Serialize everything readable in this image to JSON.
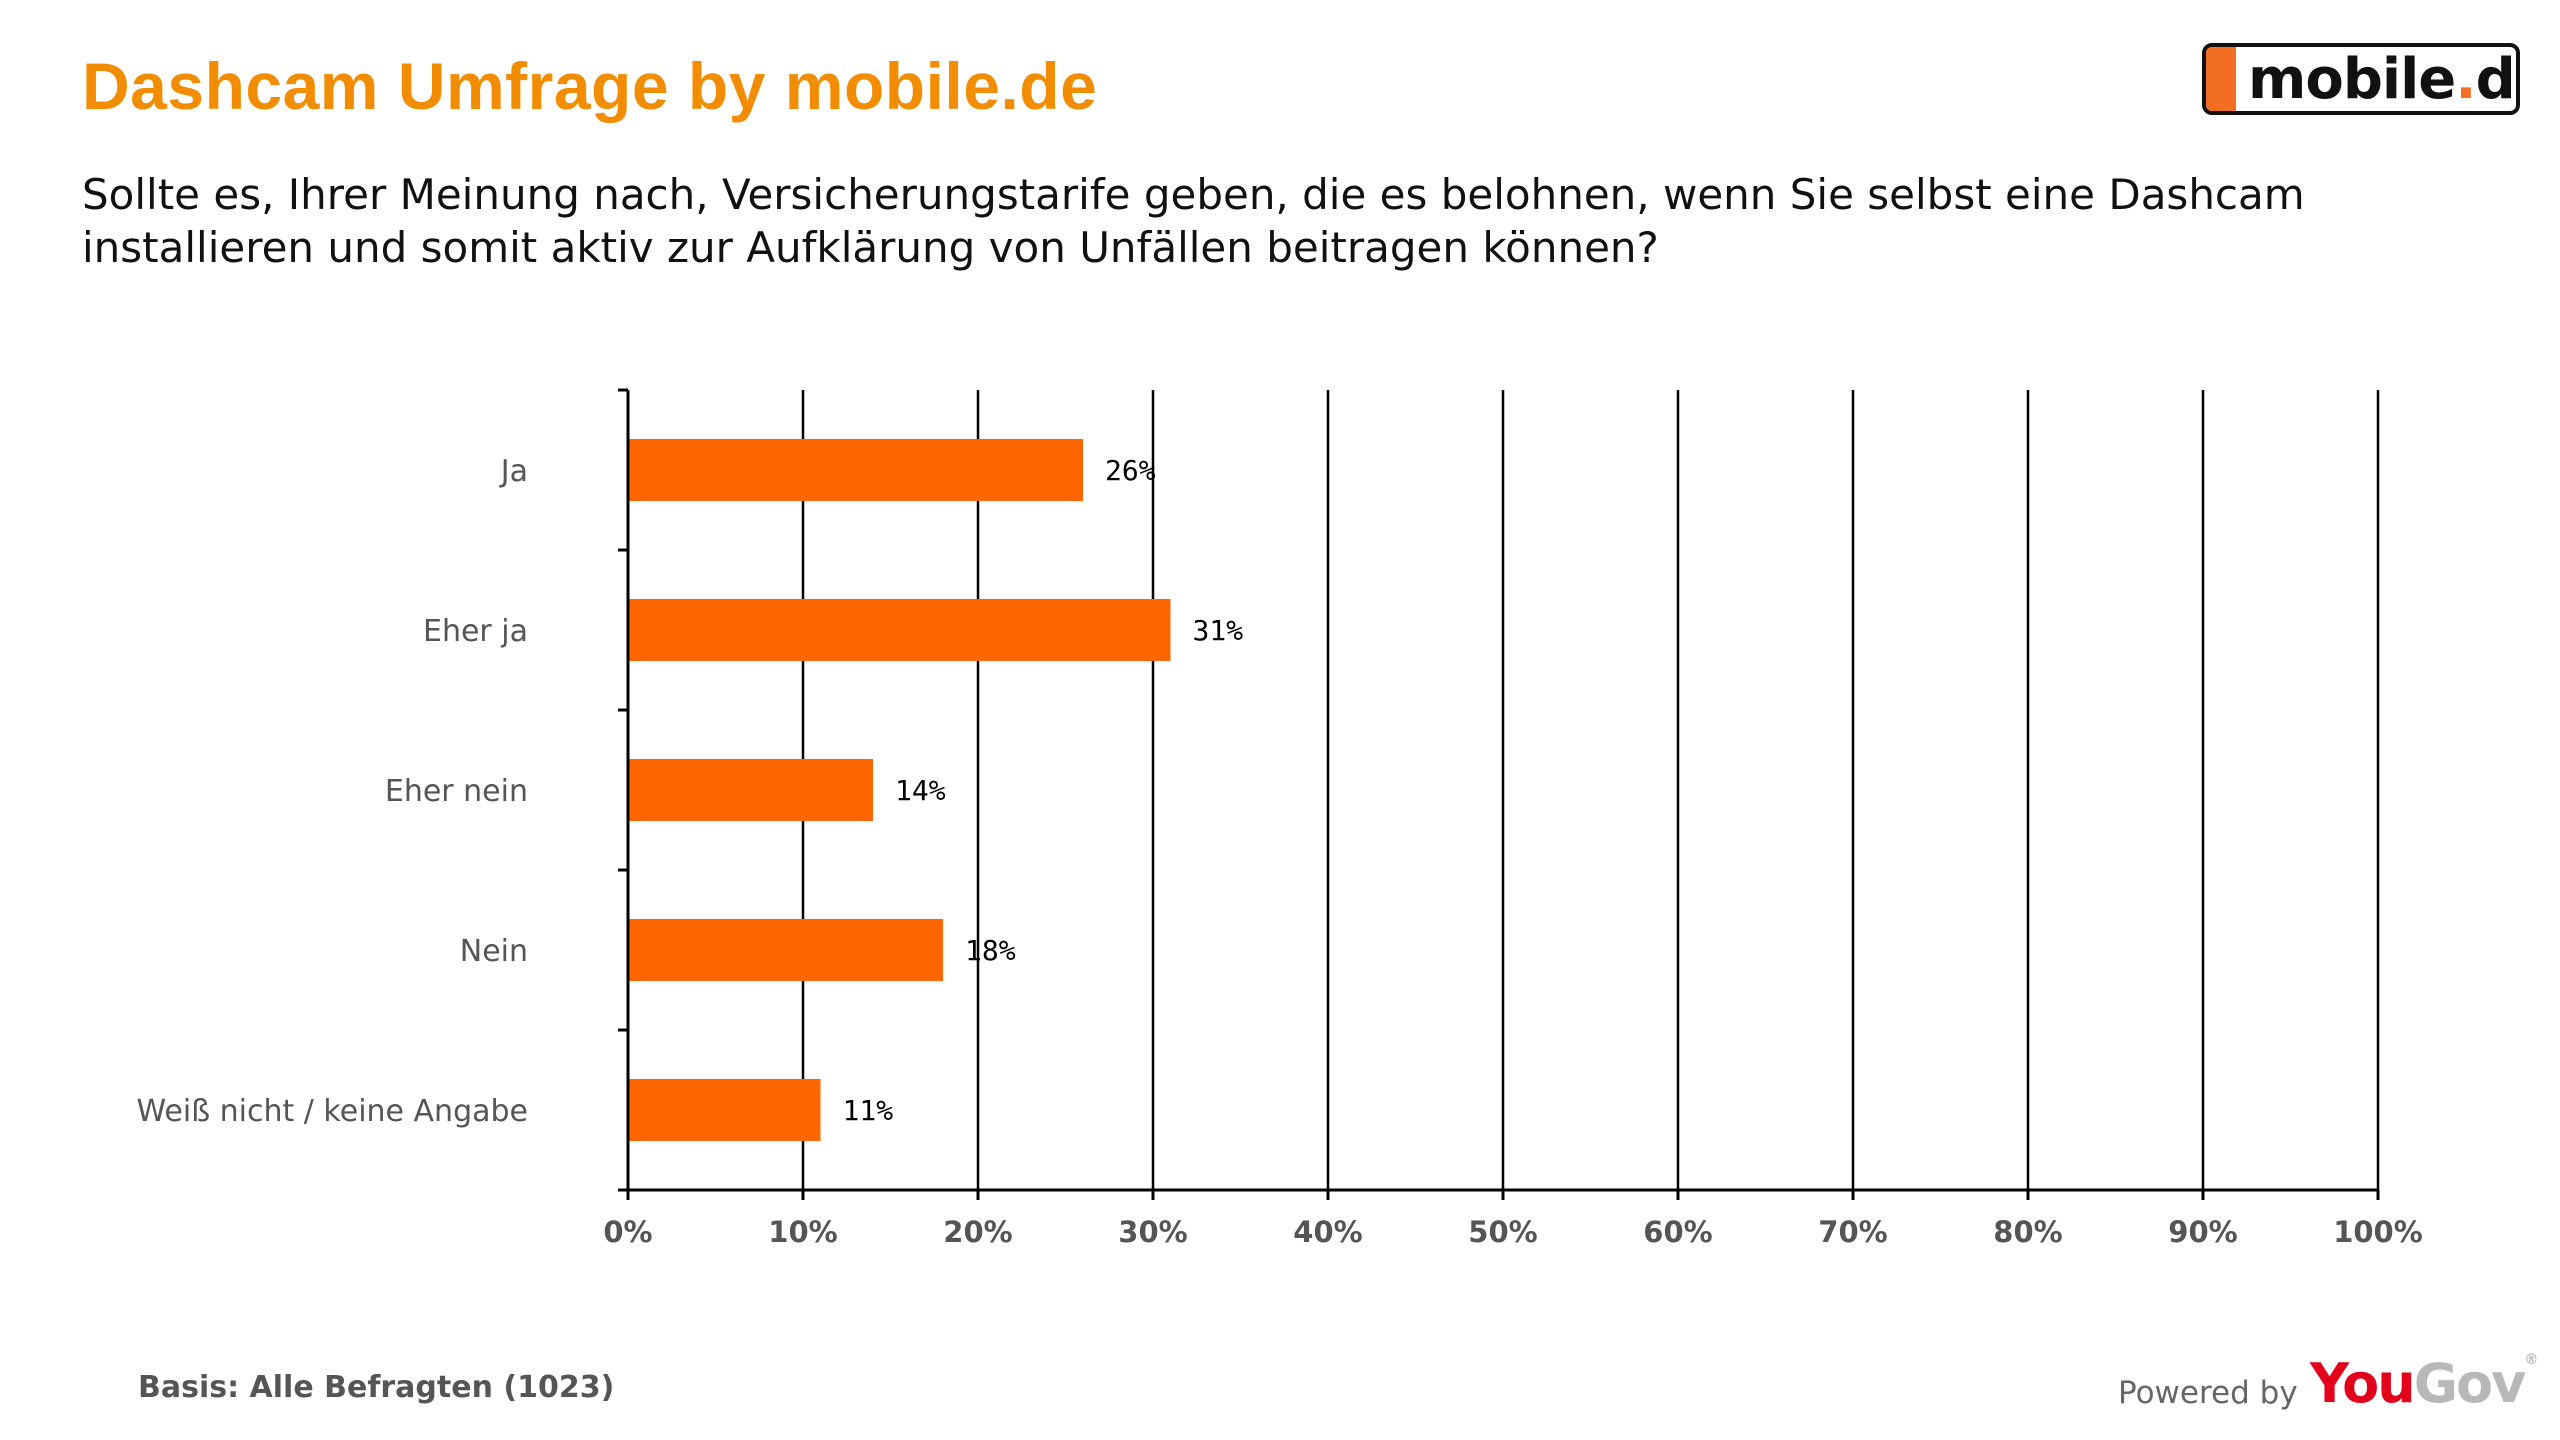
{
  "header": {
    "title": "Dashcam Umfrage by mobile.de",
    "question": "Sollte es, Ihrer Meinung nach, Versicherungstarife geben, die es belohnen, wenn Sie selbst eine Dashcam installieren und somit aktiv zur Aufklärung von Unfällen beitragen können?"
  },
  "logo": {
    "name": "mobile",
    "dot": ".",
    "tld": "de"
  },
  "footer": {
    "basis": "Basis: Alle Befragten (1023)",
    "powered_by": "Powered by",
    "yougov_you": "You",
    "yougov_gov": "Gov",
    "yougov_mark": "®"
  },
  "colors": {
    "title": "#f28c00",
    "bar": "#ff6600",
    "grid": "#000000"
  },
  "chart_data": {
    "type": "bar",
    "orientation": "horizontal",
    "categories": [
      "Ja",
      "Eher ja",
      "Eher nein",
      "Nein",
      "Weiß nicht / keine Angabe"
    ],
    "values": [
      26,
      31,
      14,
      18,
      11
    ],
    "data_labels": [
      "26%",
      "31%",
      "14%",
      "18%",
      "11%"
    ],
    "xlim": [
      0,
      100
    ],
    "x_ticks": [
      0,
      10,
      20,
      30,
      40,
      50,
      60,
      70,
      80,
      90,
      100
    ],
    "x_tick_labels": [
      "0%",
      "10%",
      "20%",
      "30%",
      "40%",
      "50%",
      "60%",
      "70%",
      "80%",
      "90%",
      "100%"
    ],
    "grid": "vertical",
    "legend": "none"
  }
}
